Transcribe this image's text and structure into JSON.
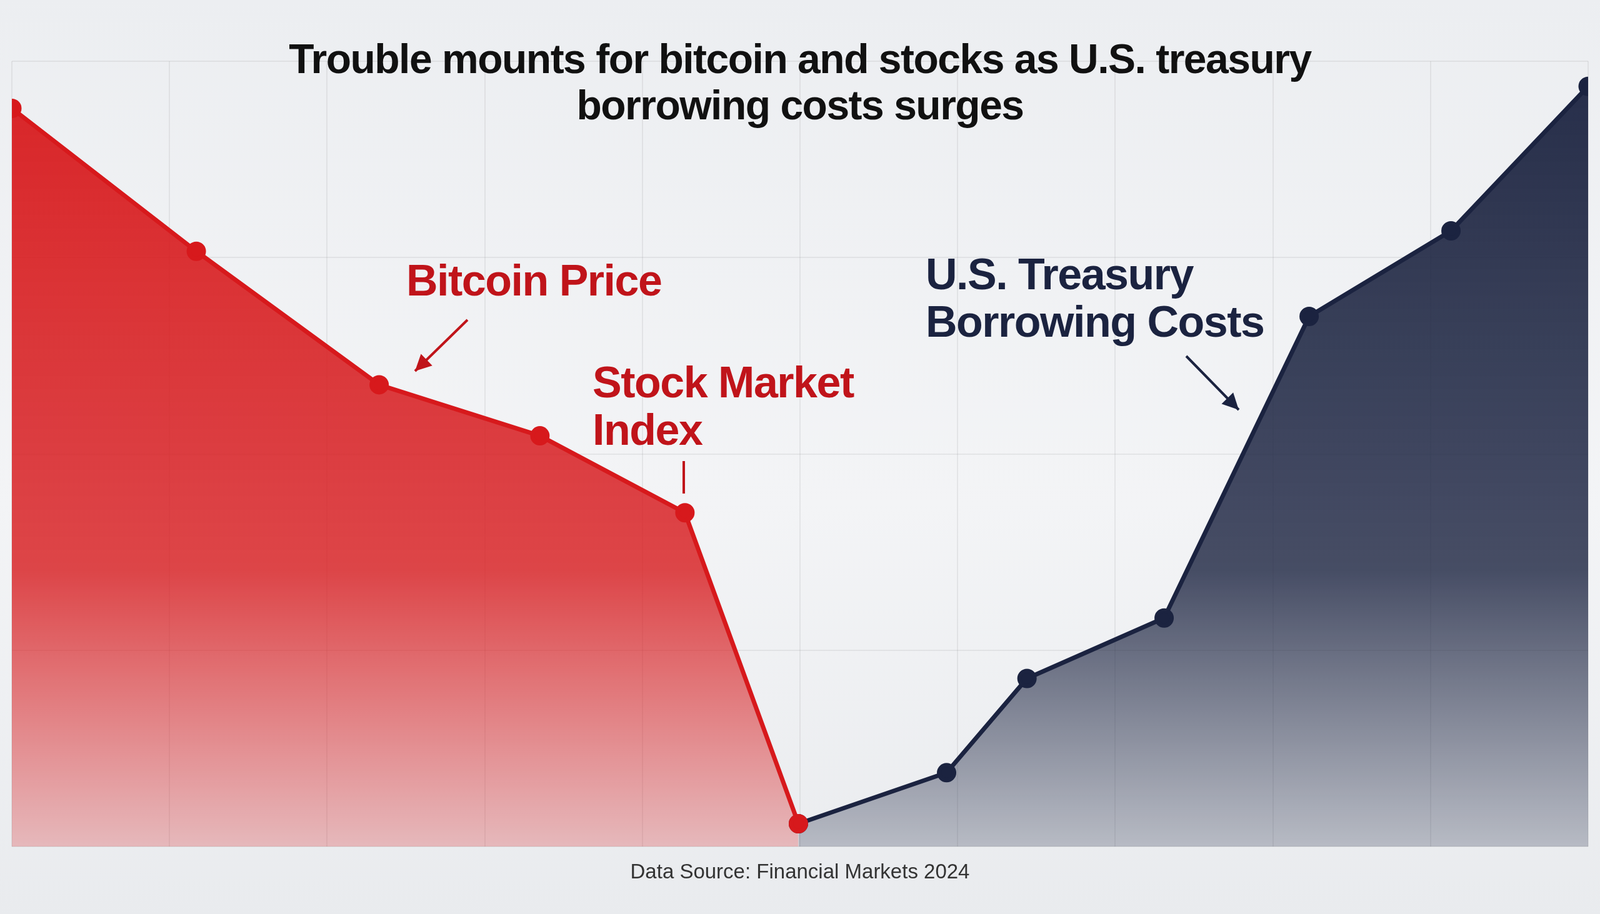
{
  "chart_data": {
    "type": "line",
    "title": "Trouble mounts for bitcoin and stocks as U.S. treasury borrowing costs surges",
    "source": "Data Source: Financial Markets 2024",
    "annotations": [
      {
        "text": "Bitcoin Price",
        "color": "#c0141a"
      },
      {
        "text": "Stock Market Index",
        "color": "#c0141a"
      },
      {
        "text": "U.S. Treasury Borrowing Costs",
        "color": "#1b2340"
      }
    ],
    "x": [
      0,
      11.7,
      23.3,
      33.5,
      42.7,
      49.9,
      59.3,
      64.4,
      73.1,
      82.3,
      91.3,
      100
    ],
    "series": [
      {
        "color": "#d7191c",
        "marker": "circle",
        "line_style": "solid",
        "values": [
          94,
          75.8,
          58.8,
          52.3,
          42.5,
          2.9,
          null,
          null,
          null,
          null,
          null,
          null
        ]
      },
      {
        "color": "#1b2340",
        "marker": "circle",
        "line_style": "solid",
        "values": [
          null,
          null,
          null,
          null,
          null,
          2.9,
          9.4,
          21.4,
          29.1,
          67.5,
          78.4,
          96.8
        ]
      }
    ],
    "xlim": [
      0,
      100
    ],
    "xticks": [
      0,
      10,
      20,
      30,
      40,
      50,
      60,
      70,
      80,
      90,
      100
    ],
    "ylim": [
      0,
      100
    ],
    "yticks": [
      0,
      25,
      50,
      75,
      100
    ],
    "grid": true,
    "tick_labels": false
  }
}
